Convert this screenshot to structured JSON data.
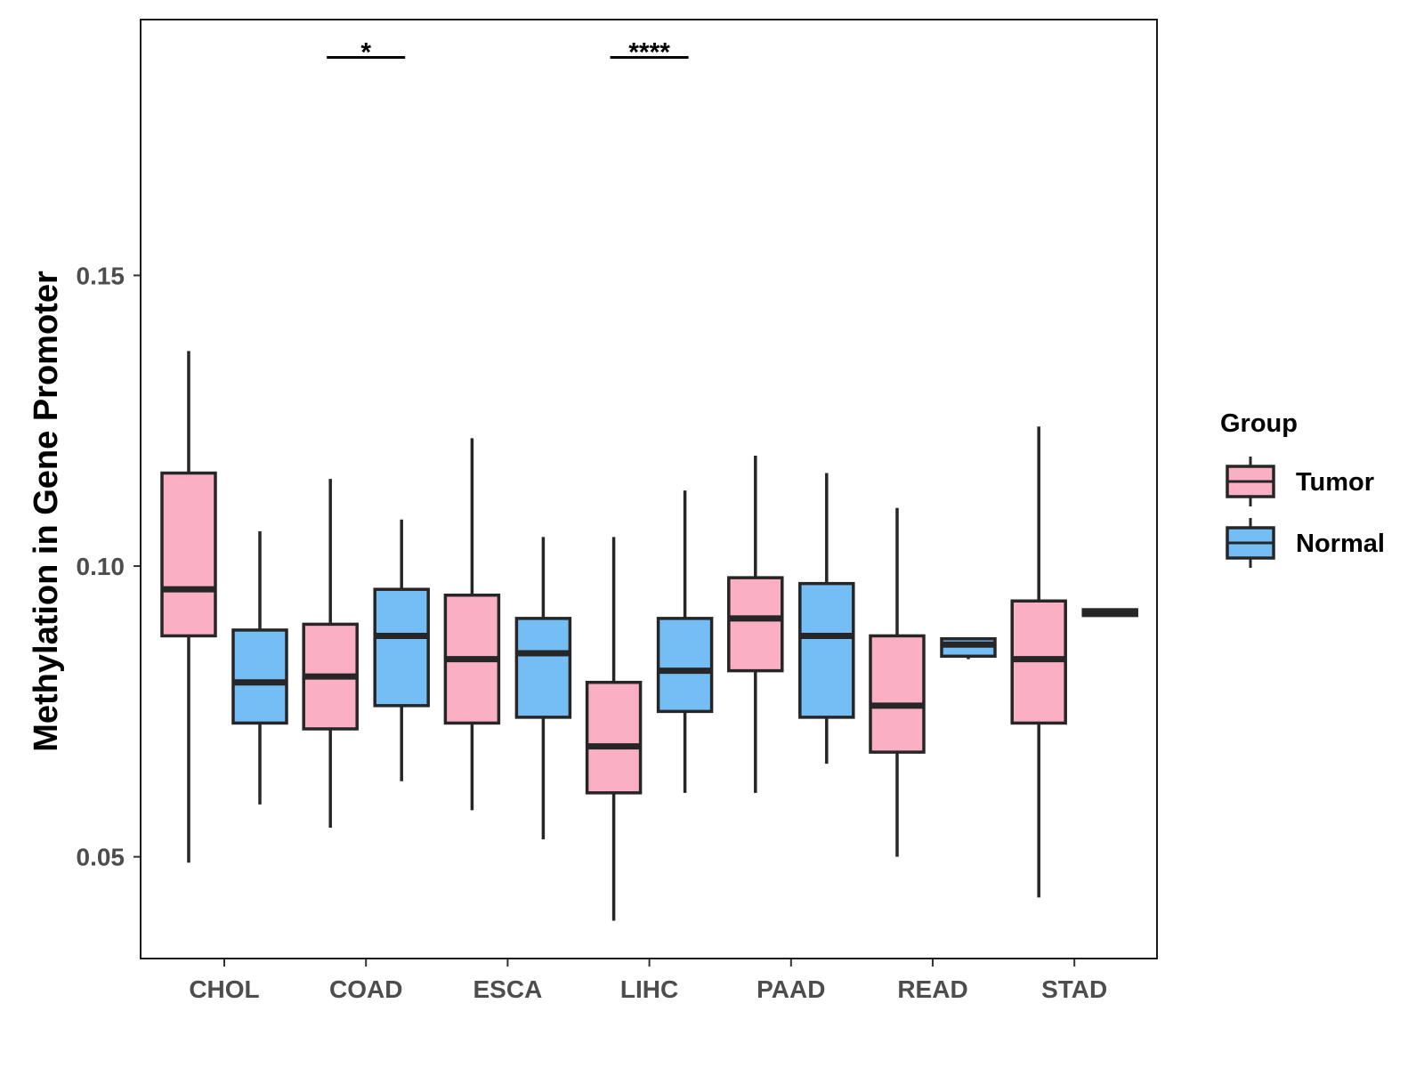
{
  "chart_data": {
    "type": "boxplot",
    "title": "",
    "xlabel": "",
    "ylabel": "Methylation in Gene Promoter",
    "ylim": [
      0.0325,
      0.194
    ],
    "yticks": [
      0.05,
      0.1,
      0.15
    ],
    "ytick_labels": [
      "0.05",
      "0.10",
      "0.15"
    ],
    "grid": false,
    "categories": [
      "CHOL",
      "COAD",
      "ESCA",
      "LIHC",
      "PAAD",
      "READ",
      "STAD"
    ],
    "legend": {
      "title": "Group",
      "position": "right",
      "entries": [
        {
          "name": "Tumor",
          "color": "#FBAFC3"
        },
        {
          "name": "Normal",
          "color": "#74BEF5"
        }
      ]
    },
    "series": [
      {
        "name": "Tumor",
        "color": "#FBAFC3",
        "boxes": [
          {
            "min": 0.049,
            "q1": 0.088,
            "median": 0.096,
            "q3": 0.116,
            "max": 0.137
          },
          {
            "min": 0.055,
            "q1": 0.072,
            "median": 0.081,
            "q3": 0.09,
            "max": 0.115
          },
          {
            "min": 0.058,
            "q1": 0.073,
            "median": 0.084,
            "q3": 0.095,
            "max": 0.122
          },
          {
            "min": 0.039,
            "q1": 0.061,
            "median": 0.069,
            "q3": 0.08,
            "max": 0.105
          },
          {
            "min": 0.061,
            "q1": 0.082,
            "median": 0.091,
            "q3": 0.098,
            "max": 0.119
          },
          {
            "min": 0.05,
            "q1": 0.068,
            "median": 0.076,
            "q3": 0.088,
            "max": 0.11
          },
          {
            "min": 0.043,
            "q1": 0.073,
            "median": 0.084,
            "q3": 0.094,
            "max": 0.124
          }
        ]
      },
      {
        "name": "Normal",
        "color": "#74BEF5",
        "boxes": [
          {
            "min": 0.059,
            "q1": 0.073,
            "median": 0.08,
            "q3": 0.089,
            "max": 0.106
          },
          {
            "min": 0.063,
            "q1": 0.076,
            "median": 0.088,
            "q3": 0.096,
            "max": 0.108
          },
          {
            "min": 0.053,
            "q1": 0.074,
            "median": 0.085,
            "q3": 0.091,
            "max": 0.105
          },
          {
            "min": 0.061,
            "q1": 0.075,
            "median": 0.082,
            "q3": 0.091,
            "max": 0.113
          },
          {
            "min": 0.066,
            "q1": 0.074,
            "median": 0.088,
            "q3": 0.097,
            "max": 0.116
          },
          {
            "min": 0.084,
            "q1": 0.0845,
            "median": 0.0865,
            "q3": 0.0875,
            "max": 0.0875
          },
          {
            "min": 0.0915,
            "q1": 0.0915,
            "median": 0.092,
            "q3": 0.0925,
            "max": 0.0925
          }
        ]
      }
    ],
    "annotations": [
      {
        "category": "COAD",
        "label": "*",
        "y": 0.1875
      },
      {
        "category": "LIHC",
        "label": "****",
        "y": 0.1875
      }
    ]
  }
}
